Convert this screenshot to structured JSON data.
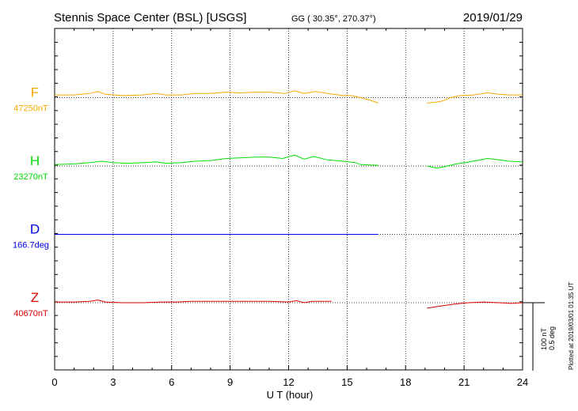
{
  "header": {
    "station": "Stennis Space Center (BSL)  [USGS]",
    "coords": "GG ( 30.35°, 270.37°)",
    "date": "2019/01/29"
  },
  "plotted_note": "Plotted at 2019/03/01 01:35 UT",
  "scale_label_1": "100 nT",
  "scale_label_2": "0.5 deg",
  "chart_data": {
    "type": "line",
    "xlabel": "U T (hour)",
    "xlim": [
      0,
      24
    ],
    "xticks": [
      0,
      3,
      6,
      9,
      12,
      15,
      18,
      21,
      24
    ],
    "xtick_labels": [
      "0",
      "3",
      "6",
      "9",
      "12",
      "15",
      "18",
      "21",
      "24"
    ],
    "grid": true,
    "scale_nT_per_bar": 100,
    "scale_deg_per_bar": 0.5,
    "series": [
      {
        "name": "F",
        "baseline_label": "47250nT",
        "baseline": 47250,
        "unit": "nT",
        "color": "#f5a800",
        "segments": [
          [
            [
              0,
              47254
            ],
            [
              1,
              47254
            ],
            [
              1.8,
              47256
            ],
            [
              2.2,
              47259
            ],
            [
              2.6,
              47255
            ],
            [
              3.5,
              47253
            ],
            [
              4.5,
              47254
            ],
            [
              5.2,
              47256
            ],
            [
              5.7,
              47254
            ],
            [
              6.5,
              47254
            ],
            [
              7.2,
              47256
            ],
            [
              8,
              47256
            ],
            [
              8.8,
              47258
            ],
            [
              9.5,
              47257
            ],
            [
              10.3,
              47258
            ],
            [
              11,
              47258
            ],
            [
              11.8,
              47256
            ],
            [
              12.3,
              47260
            ],
            [
              12.8,
              47256
            ],
            [
              13.4,
              47259
            ],
            [
              14,
              47256
            ],
            [
              14.8,
              47253
            ],
            [
              15.2,
              47253
            ],
            [
              15.7,
              47250
            ],
            [
              16.2,
              47246
            ],
            [
              16.6,
              47242
            ]
          ],
          [
            [
              19.1,
              47242
            ],
            [
              19.5,
              47243
            ],
            [
              19.9,
              47245
            ],
            [
              20.3,
              47250
            ],
            [
              20.8,
              47253
            ],
            [
              21.5,
              47254
            ],
            [
              22.2,
              47257
            ],
            [
              22.8,
              47255
            ],
            [
              23.3,
              47254
            ],
            [
              24,
              47254
            ]
          ]
        ]
      },
      {
        "name": "H",
        "baseline_label": "23270nT",
        "baseline": 23270,
        "unit": "nT",
        "color": "#00dd00",
        "segments": [
          [
            [
              0,
              23272
            ],
            [
              1,
              23273
            ],
            [
              1.8,
              23275
            ],
            [
              2.4,
              23277
            ],
            [
              3,
              23275
            ],
            [
              3.8,
              23274
            ],
            [
              4.6,
              23275
            ],
            [
              5.2,
              23276
            ],
            [
              5.7,
              23274
            ],
            [
              6.5,
              23275
            ],
            [
              7.2,
              23277
            ],
            [
              8,
              23278
            ],
            [
              8.8,
              23281
            ],
            [
              9.5,
              23282
            ],
            [
              10.3,
              23283
            ],
            [
              11,
              23283
            ],
            [
              11.7,
              23281
            ],
            [
              12.3,
              23286
            ],
            [
              12.8,
              23280
            ],
            [
              13.3,
              23284
            ],
            [
              14,
              23279
            ],
            [
              14.8,
              23277
            ],
            [
              15.4,
              23275
            ],
            [
              15.7,
              23272
            ],
            [
              16.6,
              23271
            ]
          ],
          [
            [
              19.1,
              23270
            ],
            [
              19.6,
              23267
            ],
            [
              20,
              23269
            ],
            [
              20.6,
              23273
            ],
            [
              21.3,
              23276
            ],
            [
              22.2,
              23281
            ],
            [
              22.8,
              23279
            ],
            [
              23.3,
              23277
            ],
            [
              24,
              23276
            ]
          ]
        ]
      },
      {
        "name": "D",
        "baseline_label": "166.7deg",
        "baseline": 166.7,
        "unit": "deg",
        "color": "#0000ee",
        "segments": [
          [
            [
              0,
              166.7
            ],
            [
              4,
              166.7
            ],
            [
              8,
              166.7
            ],
            [
              12,
              166.7
            ],
            [
              16.6,
              166.7
            ]
          ]
        ]
      },
      {
        "name": "Z",
        "baseline_label": "40670nT",
        "baseline": 40670,
        "unit": "nT",
        "color": "#dd0000",
        "segments": [
          [
            [
              0,
              40671
            ],
            [
              1,
              40671
            ],
            [
              1.8,
              40672
            ],
            [
              2.2,
              40674
            ],
            [
              2.6,
              40671
            ],
            [
              3.5,
              40670
            ],
            [
              4.5,
              40670
            ],
            [
              5.5,
              40671
            ],
            [
              6.3,
              40671
            ],
            [
              7,
              40672
            ],
            [
              8,
              40672
            ],
            [
              9,
              40672
            ],
            [
              10,
              40672
            ],
            [
              11,
              40672
            ],
            [
              12,
              40671
            ],
            [
              12.4,
              40673
            ],
            [
              12.8,
              40670
            ],
            [
              13.2,
              40672
            ],
            [
              14.2,
              40672
            ]
          ],
          [
            [
              19.1,
              40662
            ],
            [
              19.8,
              40665
            ],
            [
              20.5,
              40668
            ],
            [
              21.2,
              40670
            ],
            [
              22,
              40671
            ],
            [
              22.8,
              40670
            ],
            [
              23.4,
              40669
            ],
            [
              24,
              40670
            ]
          ]
        ]
      }
    ]
  }
}
